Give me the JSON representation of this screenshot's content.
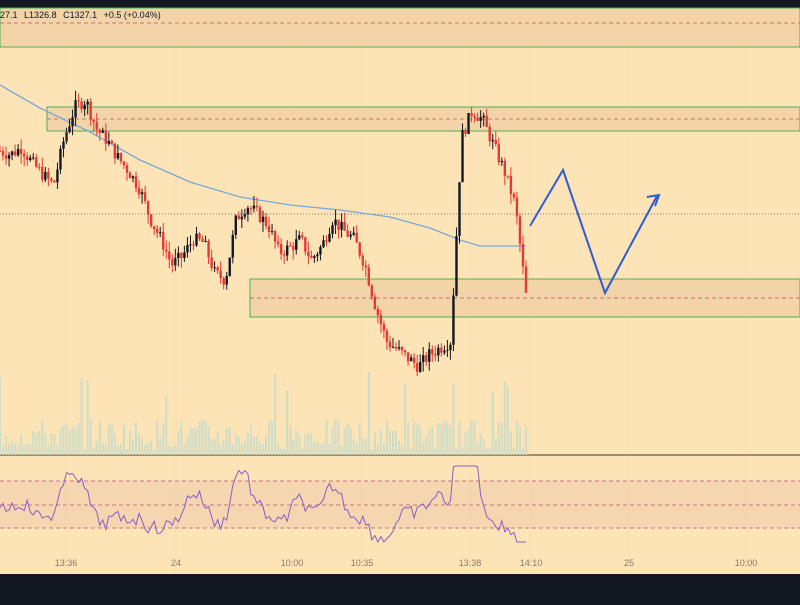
{
  "header": {
    "ohlc_fragment_close": "27.1",
    "low_label": "L1326.8",
    "close_label": "C1327.1",
    "change_label": "+0.5 (+0.04%)"
  },
  "colors": {
    "background": "#fde4b6",
    "up_candle": "#131722",
    "down_candle": "#e53935",
    "moving_average": "#7aa7d8",
    "projection": "#2f5bd3",
    "zone_fill": "#f2d4a8",
    "zone_border": "#4caf50",
    "dashed_level": "#c0506a",
    "rsi_line": "#8b5cc6",
    "rsi_band": "#f3d2b0",
    "volume_bar": "#c9dcc9",
    "outer_frame": "#131722"
  },
  "chart_data": {
    "type": "candlestick",
    "symbol_last_close": 1327.1,
    "x_tick_labels": [
      "13:36",
      "24",
      "10:00",
      "10:35",
      "13:38",
      "14:10",
      "25",
      "10:00"
    ],
    "price_series_approx_close": [
      1412,
      1410,
      1414,
      1405,
      1398,
      1392,
      1420,
      1438,
      1442,
      1425,
      1418,
      1408,
      1400,
      1390,
      1372,
      1360,
      1345,
      1350,
      1360,
      1358,
      1340,
      1336,
      1372,
      1380,
      1375,
      1368,
      1352,
      1355,
      1360,
      1348,
      1356,
      1372,
      1365,
      1360,
      1345,
      1320,
      1300,
      1295,
      1290,
      1285,
      1292,
      1296,
      1300,
      1420,
      1436,
      1430,
      1415,
      1400,
      1380,
      1327
    ],
    "moving_average": "declining then flattening",
    "support_zone": "upper resistance band near top and lower support band mid-chart",
    "projection_path": "down to support then bounce up",
    "rsi": {
      "overbought_level": 70,
      "oversold_level": 30,
      "mid_level": 50
    }
  }
}
